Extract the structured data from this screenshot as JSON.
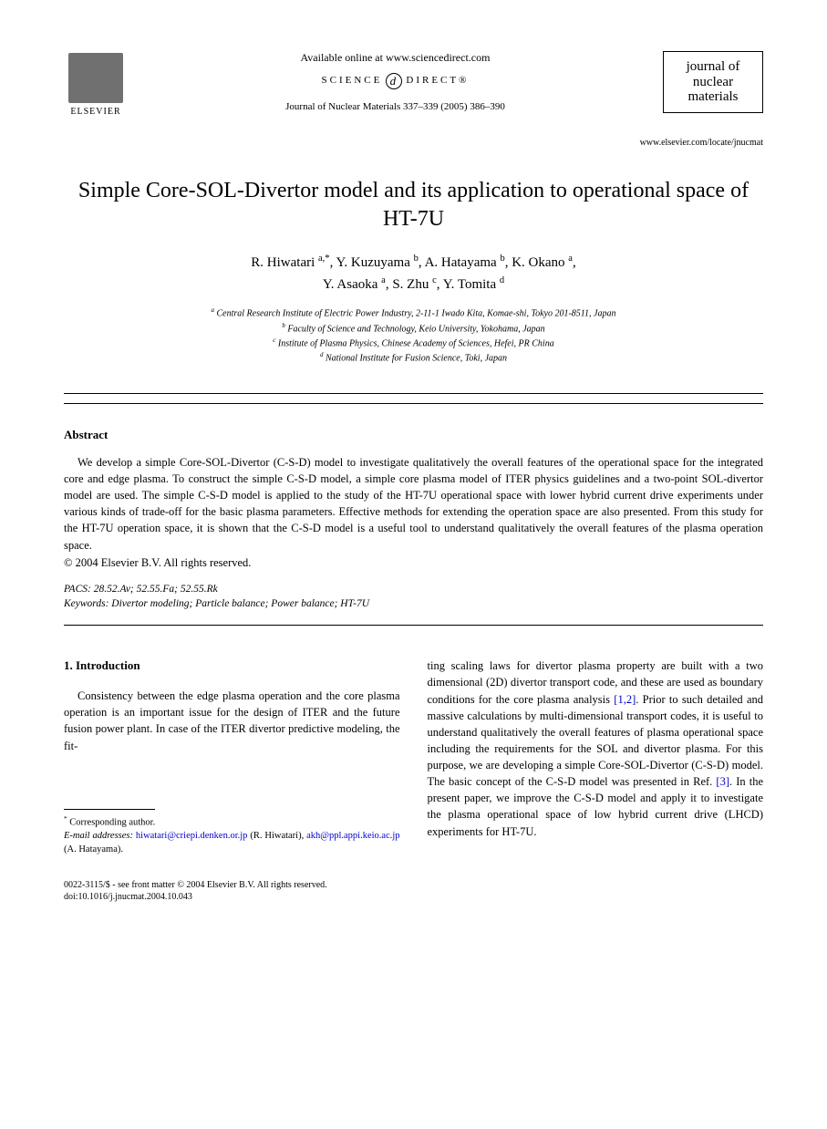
{
  "header": {
    "elsevier": "ELSEVIER",
    "available_online": "Available online at www.sciencedirect.com",
    "science_direct_left": "SCIENCE",
    "science_direct_right": "DIRECT®",
    "journal_ref": "Journal of Nuclear Materials 337–339 (2005) 386–390",
    "journal_box_line1": "journal of",
    "journal_box_line2": "nuclear",
    "journal_box_line3": "materials",
    "journal_url": "www.elsevier.com/locate/jnucmat"
  },
  "title": "Simple Core-SOL-Divertor model and its application to operational space of HT-7U",
  "authors_line1": "R. Hiwatari ",
  "authors_sup1": "a,*",
  "authors_sep1": ", Y. Kuzuyama ",
  "authors_sup2": "b",
  "authors_sep2": ", A. Hatayama ",
  "authors_sup3": "b",
  "authors_sep3": ", K. Okano ",
  "authors_sup4": "a",
  "authors_sep4": ",",
  "authors_line2_1": "Y. Asaoka ",
  "authors_sup5": "a",
  "authors_sep5": ", S. Zhu ",
  "authors_sup6": "c",
  "authors_sep6": ", Y. Tomita ",
  "authors_sup7": "d",
  "affiliations": {
    "a": "Central Research Institute of Electric Power Industry, 2-11-1 Iwado Kita, Komae-shi, Tokyo 201-8511, Japan",
    "b": "Faculty of Science and Technology, Keio University, Yokohama, Japan",
    "c": "Institute of Plasma Physics, Chinese Academy of Sciences, Hefei, PR China",
    "d": "National Institute for Fusion Science, Toki, Japan"
  },
  "abstract": {
    "heading": "Abstract",
    "text": "We develop a simple Core-SOL-Divertor (C-S-D) model to investigate qualitatively the overall features of the operational space for the integrated core and edge plasma. To construct the simple C-S-D model, a simple core plasma model of ITER physics guidelines and a two-point SOL-divertor model are used. The simple C-S-D model is applied to the study of the HT-7U operational space with lower hybrid current drive experiments under various kinds of trade-off for the basic plasma parameters. Effective methods for extending the operation space are also presented. From this study for the HT-7U operation space, it is shown that the C-S-D model is a useful tool to understand qualitatively the overall features of the plasma operation space.",
    "copyright": "© 2004 Elsevier B.V. All rights reserved."
  },
  "pacs": "PACS: 28.52.Av; 52.55.Fa; 52.55.Rk",
  "keywords": "Keywords: Divertor modeling; Particle balance; Power balance; HT-7U",
  "intro": {
    "heading": "1. Introduction",
    "left_para": "Consistency between the edge plasma operation and the core plasma operation is an important issue for the design of ITER and the future fusion power plant. In case of the ITER divertor predictive modeling, the fit-",
    "right_para_1": "ting scaling laws for divertor plasma property are built with a two dimensional (2D) divertor transport code, and these are used as boundary conditions for the core plasma analysis ",
    "ref12": "[1,2]",
    "right_para_2": ". Prior to such detailed and massive calculations by multi-dimensional transport codes, it is useful to understand qualitatively the overall features of plasma operational space including the requirements for the SOL and divertor plasma. For this purpose, we are developing a simple Core-SOL-Divertor (C-S-D) model. The basic concept of the C-S-D model was presented in Ref. ",
    "ref3": "[3]",
    "right_para_3": ". In the present paper, we improve the C-S-D model and apply it to investigate the plasma operational space of low hybrid current drive (LHCD) experiments for HT-7U."
  },
  "footnote": {
    "corresponding": "Corresponding author.",
    "email_label": "E-mail addresses:",
    "email1": "hiwatari@criepi.denken.or.jp",
    "name1": " (R. Hiwatari), ",
    "email2": "akh@ppl.appi.keio.ac.jp",
    "name2": " (A. Hatayama)."
  },
  "bottom": {
    "line1": "0022-3115/$ - see front matter © 2004 Elsevier B.V. All rights reserved.",
    "line2": "doi:10.1016/j.jnucmat.2004.10.043"
  }
}
